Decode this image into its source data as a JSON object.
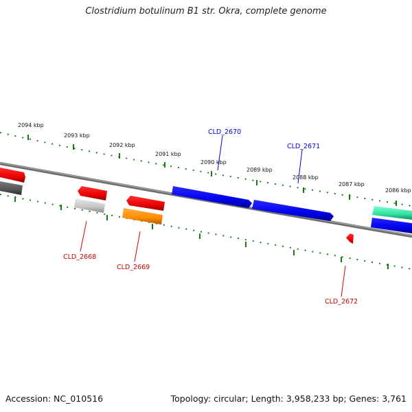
{
  "title": "Clostridium botulinum B1 str. Okra, complete genome",
  "footer": {
    "accession": "Accession: NC_010516",
    "topology": "Topology: circular; Length: 3,958,233 bp; Genes: 3,761"
  },
  "ruler": {
    "tick_labels": [
      "2094 kbp",
      "2093 kbp",
      "2092 kbp",
      "2091 kbp",
      "2090 kbp",
      "2089 kbp",
      "2088 kbp",
      "2087 kbp",
      "2086 kbp"
    ]
  },
  "gene_labels": [
    {
      "text": "CLD_2670",
      "color": "#0000cc"
    },
    {
      "text": "CLD_2671",
      "color": "#0000cc"
    },
    {
      "text": "CLD_2668",
      "color": "#cc0000"
    },
    {
      "text": "CLD_2669",
      "color": "#cc0000"
    },
    {
      "text": "CLD_2672",
      "color": "#cc0000"
    }
  ],
  "colors": {
    "ruler_ticks": "#1a7a1a",
    "backbone": "#777777",
    "forward_gene": "#0000ee",
    "reverse_gene": "#ee0000",
    "grey_gene": "#c0c0c0",
    "dark_gene": "#555555",
    "orange_gene": "#ff8c00",
    "teal_gene": "#33e0a0"
  }
}
